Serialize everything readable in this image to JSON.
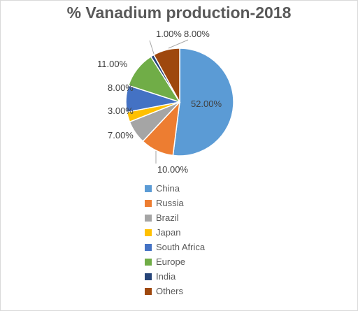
{
  "chart_data": {
    "type": "pie",
    "title": "% Vanadium production-2018",
    "categories": [
      "China",
      "Russia",
      "Brazil",
      "Japan",
      "South Africa",
      "Europe",
      "India",
      "Others"
    ],
    "values": [
      52,
      10,
      7,
      3,
      8,
      11,
      1,
      8
    ],
    "data_labels": [
      "52.00%",
      "10.00%",
      "7.00%",
      "3.00%",
      "8.00%",
      "11.00%",
      "1.00%",
      "8.00%"
    ],
    "colors": [
      "#5b9bd5",
      "#ed7d31",
      "#a5a5a5",
      "#ffc000",
      "#4472c4",
      "#70ad47",
      "#264478",
      "#9e480e"
    ],
    "legend_position": "bottom"
  }
}
